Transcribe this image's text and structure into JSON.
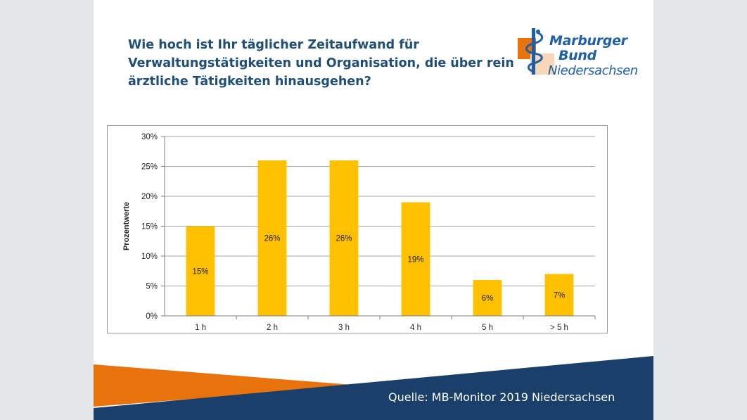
{
  "slide": {
    "title_lines": [
      "Wie hoch ist Ihr täglicher Zeitaufwand für",
      "Verwaltungstätigkeiten und Organisation, die über rein",
      "ärztliche Tätigkeiten hinausgehen?"
    ],
    "logo": {
      "line1": "Marburger",
      "line2": "Bund",
      "line3": "Niedersachsen"
    },
    "source": "Quelle: MB-Monitor 2019 Niedersachsen"
  },
  "colors": {
    "title": "#1f4e79",
    "bar": "#ffc000",
    "footer_navy": "#1b3f6b",
    "footer_orange": "#e8730c",
    "logo_blue": "#1f5fa6",
    "logo_orange": "#e8730c",
    "logo_peach": "#f8d6b8"
  },
  "chart_data": {
    "type": "bar",
    "title": "",
    "categories": [
      "1 h",
      "2 h",
      "3 h",
      "4 h",
      "5 h",
      "> 5 h"
    ],
    "values": [
      15,
      26,
      26,
      19,
      6,
      7
    ],
    "data_labels": [
      "15%",
      "26%",
      "26%",
      "19%",
      "6%",
      "7%"
    ],
    "xlabel": "",
    "ylabel": "Prozentwerte",
    "ylim": [
      0,
      30
    ],
    "y_ticks": [
      0,
      5,
      10,
      15,
      20,
      25,
      30
    ],
    "y_tick_labels": [
      "0%",
      "5%",
      "10%",
      "15%",
      "20%",
      "25%",
      "30%"
    ],
    "grid": true,
    "legend": "none"
  }
}
